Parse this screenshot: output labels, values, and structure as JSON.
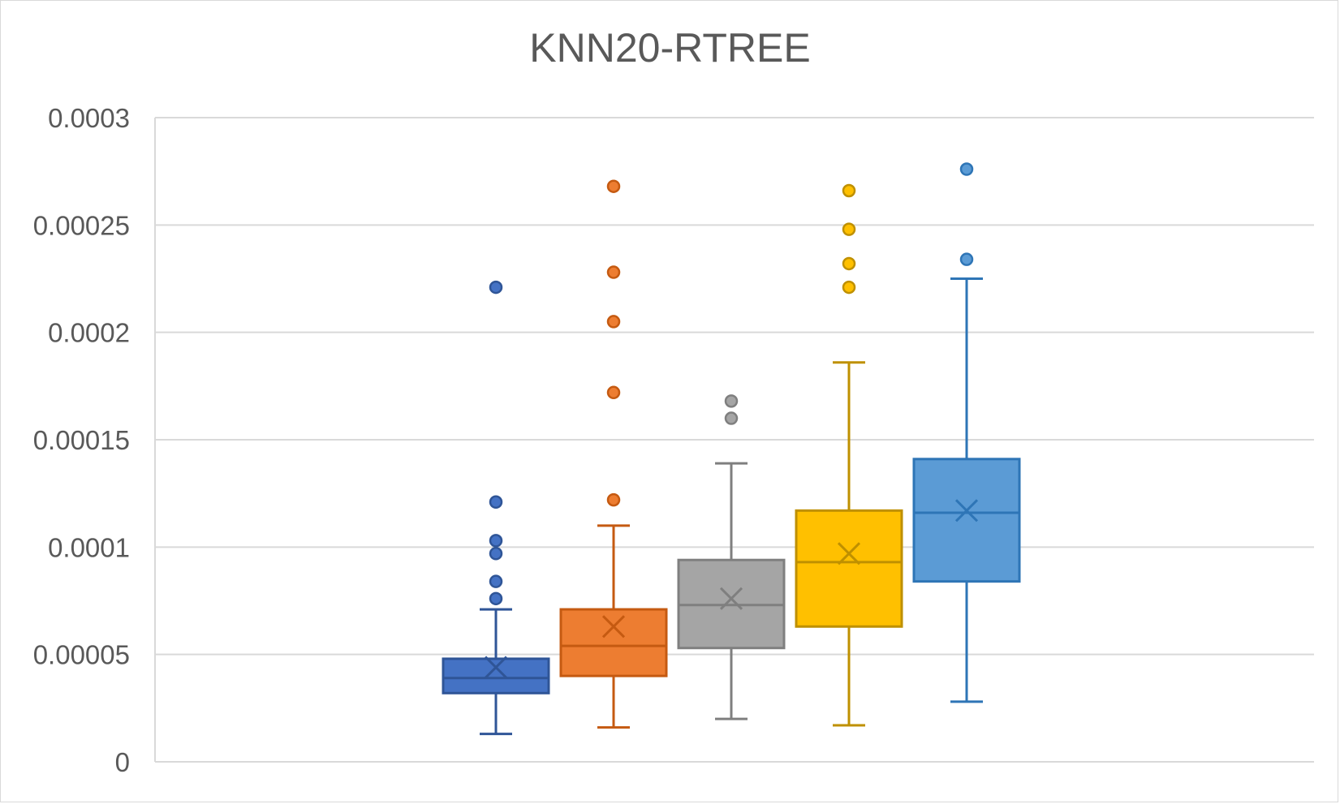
{
  "chart_data": {
    "type": "boxplot",
    "title": "KNN20-RTREE",
    "xlabel": "",
    "ylabel": "",
    "ylim": [
      0,
      0.0003
    ],
    "grid": true,
    "y_ticks": [
      {
        "value": 0,
        "label": "0"
      },
      {
        "value": 5e-05,
        "label": "0.00005"
      },
      {
        "value": 0.0001,
        "label": "0.0001"
      },
      {
        "value": 0.00015,
        "label": "0.00015"
      },
      {
        "value": 0.0002,
        "label": "0.0002"
      },
      {
        "value": 0.00025,
        "label": "0.00025"
      },
      {
        "value": 0.0003,
        "label": "0.0003"
      }
    ],
    "series": [
      {
        "color": "#4472c4",
        "stroke": "#2f5597",
        "min": 1.3e-05,
        "q1": 3.2e-05,
        "median": 3.9e-05,
        "q3": 4.8e-05,
        "max": 7.1e-05,
        "mean": 4.4e-05,
        "outliers": [
          7.6e-05,
          8.4e-05,
          9.7e-05,
          0.000103,
          0.000121,
          0.000221
        ]
      },
      {
        "color": "#ed7d31",
        "stroke": "#c55a11",
        "min": 1.6e-05,
        "q1": 4e-05,
        "median": 5.4e-05,
        "q3": 7.1e-05,
        "max": 0.00011,
        "mean": 6.3e-05,
        "outliers": [
          0.000122,
          0.000172,
          0.000205,
          0.000228,
          0.000268
        ]
      },
      {
        "color": "#a5a5a5",
        "stroke": "#7f7f7f",
        "min": 2e-05,
        "q1": 5.3e-05,
        "median": 7.3e-05,
        "q3": 9.4e-05,
        "max": 0.000139,
        "mean": 7.6e-05,
        "outliers": [
          0.00016,
          0.000168
        ]
      },
      {
        "color": "#ffc000",
        "stroke": "#bf9000",
        "min": 1.7e-05,
        "q1": 6.3e-05,
        "median": 9.3e-05,
        "q3": 0.000117,
        "max": 0.000186,
        "mean": 9.7e-05,
        "outliers": [
          0.000221,
          0.000232,
          0.000248,
          0.000266
        ]
      },
      {
        "color": "#5b9bd5",
        "stroke": "#2e75b6",
        "min": 2.8e-05,
        "q1": 8.4e-05,
        "median": 0.000116,
        "q3": 0.000141,
        "max": 0.000225,
        "mean": 0.000117,
        "outliers": [
          0.000234,
          0.000276
        ]
      }
    ]
  }
}
